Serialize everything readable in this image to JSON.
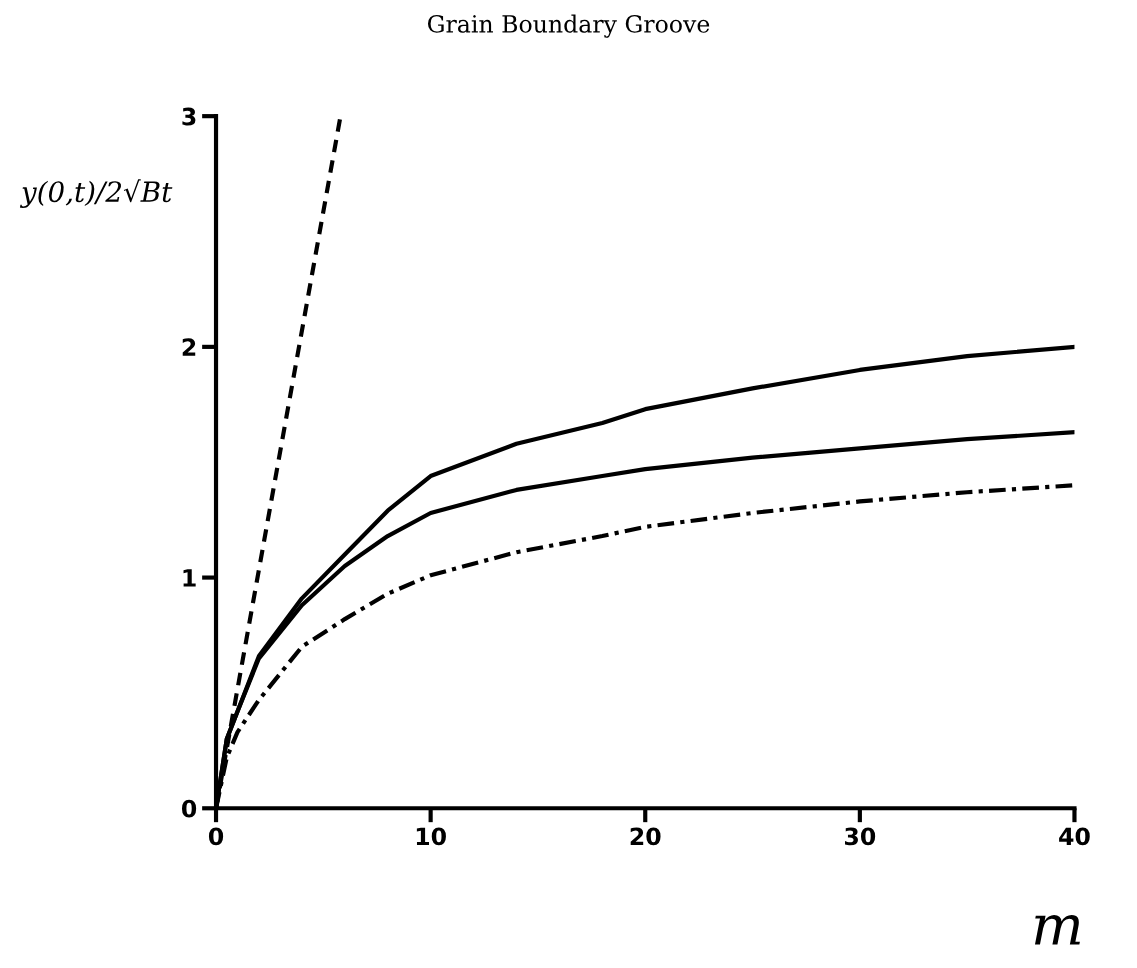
{
  "chart_data": {
    "type": "line",
    "title": "Grain Boundary Groove",
    "xlabel": "m",
    "ylabel": "y(0,t)/2√Bt",
    "xlim": [
      0,
      40
    ],
    "ylim": [
      0,
      3
    ],
    "xticks": [
      0,
      10,
      20,
      30,
      40
    ],
    "yticks": [
      0,
      1,
      2,
      3
    ],
    "grid": false,
    "legend": false,
    "series": [
      {
        "color": "#000000",
        "line_style": "dashed",
        "x": [
          0,
          5.8
        ],
        "values": [
          0,
          3
        ]
      },
      {
        "color": "#000000",
        "line_style": "solid",
        "x": [
          0,
          0.5,
          1,
          2,
          4,
          6,
          8,
          10,
          14,
          18,
          20,
          25,
          30,
          35,
          40
        ],
        "values": [
          0,
          0.3,
          0.42,
          0.66,
          0.91,
          1.1,
          1.29,
          1.44,
          1.58,
          1.67,
          1.73,
          1.82,
          1.9,
          1.96,
          2.0
        ]
      },
      {
        "color": "#000000",
        "line_style": "solid",
        "x": [
          0,
          0.5,
          1,
          2,
          4,
          6,
          8,
          10,
          14,
          18,
          20,
          25,
          30,
          35,
          40
        ],
        "values": [
          0,
          0.3,
          0.42,
          0.65,
          0.88,
          1.05,
          1.18,
          1.28,
          1.38,
          1.44,
          1.47,
          1.52,
          1.56,
          1.6,
          1.63
        ]
      },
      {
        "color": "#000000",
        "line_style": "dashdot",
        "x": [
          0,
          0.5,
          1,
          2,
          4,
          6,
          8,
          10,
          14,
          18,
          20,
          25,
          30,
          35,
          40
        ],
        "values": [
          0,
          0.22,
          0.33,
          0.47,
          0.7,
          0.82,
          0.93,
          1.01,
          1.11,
          1.18,
          1.22,
          1.28,
          1.33,
          1.37,
          1.4
        ]
      }
    ]
  }
}
